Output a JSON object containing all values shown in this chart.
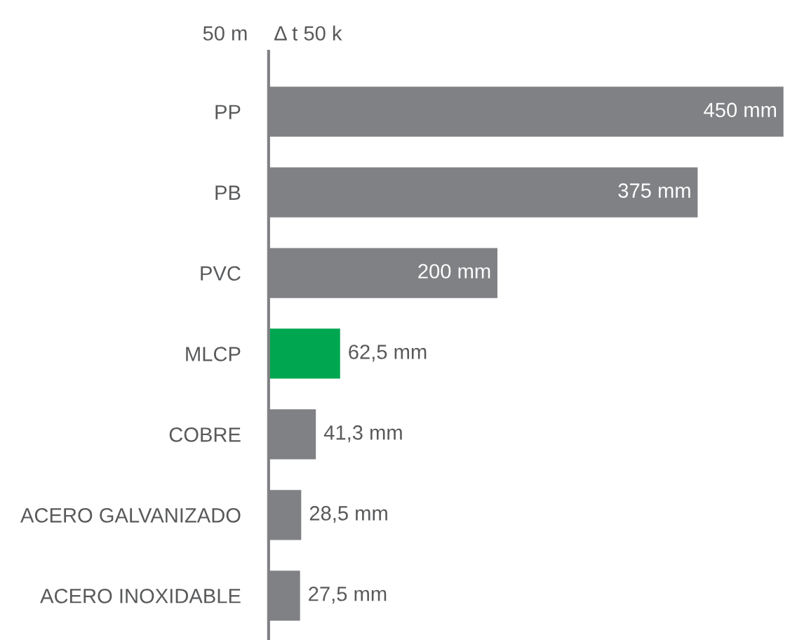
{
  "chart_data": {
    "type": "bar",
    "orientation": "horizontal",
    "categories": [
      "PP",
      "PB",
      "PVC",
      "MLCP",
      "COBRE",
      "ACERO GALVANIZADO",
      "ACERO INOXIDABLE"
    ],
    "values": [
      450,
      375,
      200,
      62.5,
      41.3,
      28.5,
      27.5
    ],
    "colors": [
      "#808184",
      "#808184",
      "#808184",
      "#00a650",
      "#808184",
      "#808184",
      "#808184"
    ],
    "value_labels": [
      "450 mm",
      "375 mm",
      "200 mm",
      "62,5 mm",
      "41,3 mm",
      "28,5 mm",
      "27,5 mm"
    ],
    "annotations": [
      "50 m",
      "Δ t 50 k"
    ],
    "grid": false,
    "legend": false
  }
}
